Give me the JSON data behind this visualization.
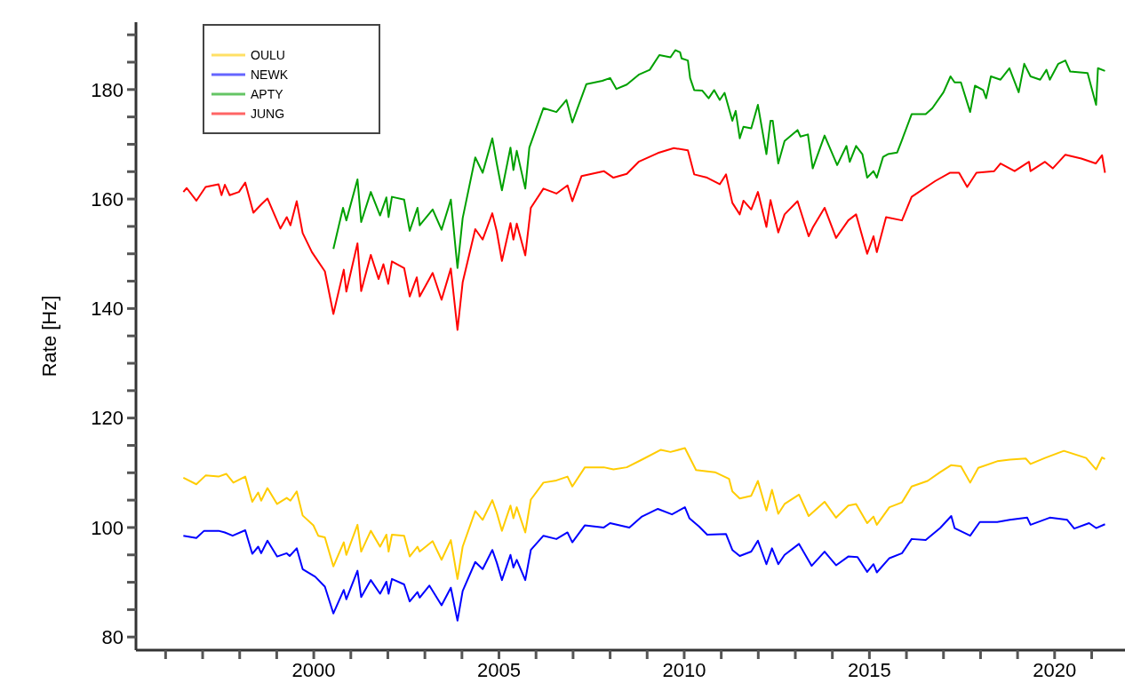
{
  "chart_data": {
    "type": "line",
    "ylabel": "Rate [Hz]",
    "xlim": [
      1995.2,
      2021.9
    ],
    "xticks": [
      {
        "value": 1996,
        "label": null
      },
      {
        "value": 1997,
        "label": null
      },
      {
        "value": 1998,
        "label": null
      },
      {
        "value": 1999,
        "label": null
      },
      2000,
      {
        "value": 2001,
        "label": null
      },
      {
        "value": 2002,
        "label": null
      },
      {
        "value": 2003,
        "label": null
      },
      {
        "value": 2004,
        "label": null
      },
      2005,
      {
        "value": 2006,
        "label": null
      },
      {
        "value": 2007,
        "label": null
      },
      {
        "value": 2008,
        "label": null
      },
      {
        "value": 2009,
        "label": null
      },
      2010,
      {
        "value": 2011,
        "label": null
      },
      {
        "value": 2012,
        "label": null
      },
      {
        "value": 2013,
        "label": null
      },
      {
        "value": 2014,
        "label": null
      },
      2015,
      {
        "value": 2016,
        "label": null
      },
      {
        "value": 2017,
        "label": null
      },
      {
        "value": 2018,
        "label": null
      },
      {
        "value": 2019,
        "label": null
      },
      2020,
      {
        "value": 2021,
        "label": null
      }
    ],
    "ylim": [
      77.6,
      192.3
    ],
    "yticks": [
      80,
      {
        "value": 85,
        "label": null
      },
      {
        "value": 90,
        "label": null
      },
      {
        "value": 95,
        "label": null
      },
      100,
      {
        "value": 105,
        "label": null
      },
      {
        "value": 110,
        "label": null
      },
      {
        "value": 115,
        "label": null
      },
      120,
      {
        "value": 125,
        "label": null
      },
      {
        "value": 130,
        "label": null
      },
      {
        "value": 135,
        "label": null
      },
      140,
      {
        "value": 145,
        "label": null
      },
      {
        "value": 150,
        "label": null
      },
      {
        "value": 155,
        "label": null
      },
      160,
      {
        "value": 165,
        "label": null
      },
      {
        "value": 170,
        "label": null
      },
      {
        "value": 175,
        "label": null
      },
      180,
      {
        "value": 185,
        "label": null
      },
      {
        "value": 190,
        "label": null
      }
    ],
    "grid": false,
    "legend": "top left",
    "marker": "none",
    "line_style": "solid",
    "series": [
      {
        "name": "OULU",
        "color": "#ffcc00",
        "x": [
          1996.48,
          1996.83,
          1997.08,
          1997.43,
          1997.64,
          1997.83,
          1998.15,
          1998.34,
          1998.5,
          1998.58,
          1998.75,
          1999.01,
          1999.27,
          1999.37,
          1999.54,
          1999.7,
          1999.99,
          2000.12,
          2000.3,
          2000.53,
          2000.81,
          2000.88,
          2001.18,
          2001.28,
          2001.54,
          2001.79,
          2001.96,
          2002.02,
          2002.11,
          2002.44,
          2002.59,
          2002.8,
          2002.86,
          2003.21,
          2003.45,
          2003.7,
          2003.88,
          2004.02,
          2004.36,
          2004.56,
          2004.82,
          2004.94,
          2005.08,
          2005.31,
          2005.39,
          2005.48,
          2005.71,
          2005.86,
          2006.2,
          2006.55,
          2006.85,
          2006.98,
          2007.32,
          2007.83,
          2008.09,
          2008.45,
          2008.86,
          2009.37,
          2009.63,
          2010.02,
          2010.32,
          2010.83,
          2011.21,
          2011.3,
          2011.5,
          2011.81,
          2011.99,
          2012.22,
          2012.37,
          2012.54,
          2012.71,
          2013.1,
          2013.36,
          2013.79,
          2014.1,
          2014.43,
          2014.64,
          2014.94,
          2015.11,
          2015.2,
          2015.54,
          2015.88,
          2016.14,
          2016.57,
          2016.91,
          2017.21,
          2017.47,
          2017.72,
          2017.94,
          2018.45,
          2018.79,
          2019.22,
          2019.35,
          2019.74,
          2020.25,
          2020.85,
          2021.12,
          2021.28,
          2021.36
        ],
        "values": [
          109.1,
          107.9,
          109.5,
          109.3,
          109.8,
          108.2,
          109.3,
          104.7,
          106.4,
          104.9,
          107.2,
          104.3,
          105.4,
          104.9,
          106.6,
          102.2,
          100.4,
          98.5,
          98.2,
          92.9,
          97.3,
          95.0,
          100.5,
          95.6,
          99.4,
          96.5,
          98.7,
          95.6,
          98.7,
          98.5,
          94.7,
          96.5,
          95.6,
          97.5,
          94.1,
          97.7,
          90.6,
          96.5,
          103.0,
          101.4,
          105.0,
          102.7,
          99.4,
          104.0,
          101.7,
          103.7,
          99.1,
          105.1,
          108.2,
          108.6,
          109.3,
          107.5,
          111.0,
          111.0,
          110.6,
          111.0,
          112.4,
          114.2,
          113.8,
          114.5,
          110.5,
          110.1,
          108.9,
          106.6,
          105.3,
          105.8,
          108.5,
          103.1,
          106.9,
          102.5,
          104.3,
          106.0,
          102.1,
          104.7,
          101.8,
          104.0,
          104.3,
          100.8,
          102.0,
          100.5,
          103.7,
          104.6,
          107.5,
          108.5,
          110.1,
          111.4,
          111.2,
          108.2,
          110.9,
          112.1,
          112.4,
          112.6,
          111.6,
          112.7,
          114.0,
          112.7,
          110.6,
          112.8,
          112.5
        ]
      },
      {
        "name": "NEWK",
        "color": "#0000ff",
        "x": [
          1996.48,
          1996.83,
          1997.04,
          1997.43,
          1997.6,
          1997.81,
          1998.15,
          1998.34,
          1998.5,
          1998.58,
          1998.75,
          1999.01,
          1999.27,
          1999.35,
          1999.54,
          1999.7,
          2000.04,
          2000.3,
          2000.53,
          2000.81,
          2000.88,
          2001.18,
          2001.28,
          2001.54,
          2001.79,
          2001.96,
          2002.02,
          2002.11,
          2002.44,
          2002.59,
          2002.8,
          2002.86,
          2003.12,
          2003.45,
          2003.7,
          2003.88,
          2004.02,
          2004.36,
          2004.56,
          2004.82,
          2004.94,
          2005.08,
          2005.31,
          2005.39,
          2005.48,
          2005.71,
          2005.86,
          2006.2,
          2006.55,
          2006.85,
          2006.98,
          2007.32,
          2007.83,
          2008.0,
          2008.52,
          2008.86,
          2009.29,
          2009.67,
          2010.02,
          2010.14,
          2010.4,
          2010.62,
          2011.13,
          2011.3,
          2011.5,
          2011.81,
          2011.99,
          2012.22,
          2012.37,
          2012.54,
          2012.71,
          2013.1,
          2013.44,
          2013.79,
          2014.1,
          2014.43,
          2014.68,
          2014.94,
          2015.11,
          2015.2,
          2015.54,
          2015.88,
          2016.14,
          2016.52,
          2016.91,
          2017.21,
          2017.3,
          2017.72,
          2017.98,
          2018.45,
          2018.79,
          2019.26,
          2019.35,
          2019.87,
          2020.34,
          2020.53,
          2020.93,
          2021.12,
          2021.36
        ],
        "values": [
          98.5,
          98.1,
          99.4,
          99.4,
          99.1,
          98.5,
          99.5,
          95.2,
          96.5,
          95.3,
          97.6,
          94.7,
          95.3,
          94.8,
          96.2,
          92.4,
          91.0,
          89.2,
          84.3,
          88.6,
          86.9,
          92.1,
          87.3,
          90.4,
          87.9,
          90.1,
          87.9,
          90.6,
          89.6,
          86.5,
          88.2,
          87.2,
          89.4,
          85.8,
          89.0,
          83.0,
          88.4,
          93.7,
          92.4,
          95.9,
          93.6,
          90.4,
          95.0,
          92.7,
          94.1,
          90.4,
          95.9,
          98.5,
          97.9,
          99.1,
          97.3,
          100.4,
          100.0,
          100.8,
          100.0,
          102.0,
          103.4,
          102.4,
          103.7,
          101.7,
          100.2,
          98.7,
          98.8,
          95.9,
          94.8,
          95.6,
          97.6,
          93.3,
          96.2,
          93.3,
          95.0,
          97.0,
          93.0,
          95.6,
          93.1,
          94.7,
          94.6,
          91.9,
          93.3,
          91.8,
          94.4,
          95.3,
          97.9,
          97.7,
          99.9,
          102.1,
          99.9,
          98.5,
          101.0,
          101.0,
          101.4,
          101.8,
          100.5,
          101.8,
          101.4,
          99.8,
          100.8,
          99.9,
          100.6
        ]
      },
      {
        "name": "APTY",
        "color": "#00a000",
        "x": [
          2000.53,
          2000.79,
          2000.88,
          2001.18,
          2001.28,
          2001.54,
          2001.79,
          2001.96,
          2002.02,
          2002.11,
          2002.44,
          2002.59,
          2002.8,
          2002.86,
          2003.21,
          2003.45,
          2003.7,
          2003.88,
          2004.02,
          2004.36,
          2004.56,
          2004.82,
          2004.94,
          2005.08,
          2005.31,
          2005.39,
          2005.48,
          2005.71,
          2005.82,
          2006.2,
          2006.55,
          2006.82,
          2006.98,
          2007.36,
          2007.79,
          2008.0,
          2008.17,
          2008.45,
          2008.77,
          2009.07,
          2009.33,
          2009.63,
          2009.76,
          2009.89,
          2009.93,
          2010.1,
          2010.16,
          2010.27,
          2010.49,
          2010.66,
          2010.81,
          2010.96,
          2011.09,
          2011.3,
          2011.39,
          2011.5,
          2011.6,
          2011.81,
          2011.99,
          2012.22,
          2012.33,
          2012.39,
          2012.54,
          2012.71,
          2013.06,
          2013.14,
          2013.34,
          2013.47,
          2013.79,
          2014.13,
          2014.38,
          2014.47,
          2014.64,
          2014.81,
          2014.94,
          2015.11,
          2015.2,
          2015.37,
          2015.5,
          2015.75,
          2015.88,
          2016.14,
          2016.52,
          2016.7,
          2017.0,
          2017.19,
          2017.3,
          2017.47,
          2017.72,
          2017.85,
          2018.07,
          2018.15,
          2018.28,
          2018.54,
          2018.78,
          2019.03,
          2019.18,
          2019.35,
          2019.61,
          2019.78,
          2019.87,
          2020.1,
          2020.29,
          2020.42,
          2020.89,
          2021.12,
          2021.17,
          2021.36
        ],
        "values": [
          150.9,
          158.4,
          156.1,
          163.6,
          155.8,
          161.3,
          157.0,
          160.3,
          156.7,
          160.4,
          159.9,
          154.2,
          158.4,
          155.2,
          158.1,
          154.4,
          159.9,
          147.4,
          156.5,
          167.6,
          164.8,
          171.1,
          166.5,
          161.6,
          169.4,
          165.3,
          168.8,
          161.9,
          169.4,
          176.6,
          175.9,
          178.1,
          174.0,
          181.0,
          181.6,
          182.1,
          180.1,
          180.9,
          182.7,
          183.6,
          186.3,
          185.9,
          187.2,
          186.8,
          185.7,
          185.3,
          182.1,
          179.9,
          179.8,
          178.4,
          179.9,
          178.1,
          179.4,
          174.3,
          176.1,
          171.1,
          173.2,
          172.9,
          177.2,
          168.2,
          174.3,
          174.3,
          166.5,
          170.6,
          172.6,
          171.4,
          171.8,
          165.6,
          171.6,
          166.2,
          169.7,
          166.8,
          169.7,
          168.2,
          163.9,
          165.1,
          163.9,
          167.7,
          168.2,
          168.5,
          170.8,
          175.5,
          175.5,
          176.6,
          179.5,
          182.4,
          181.3,
          181.3,
          175.9,
          180.7,
          179.9,
          178.4,
          182.4,
          181.8,
          183.9,
          179.5,
          184.7,
          182.4,
          181.8,
          183.6,
          181.8,
          184.7,
          185.3,
          183.3,
          183.0,
          177.2,
          183.9,
          183.4
        ]
      },
      {
        "name": "JUNG",
        "color": "#ff0000",
        "x": [
          1996.48,
          1996.57,
          1996.83,
          1997.08,
          1997.43,
          1997.51,
          1997.6,
          1997.73,
          1997.98,
          1998.15,
          1998.37,
          1998.58,
          1998.75,
          1999.1,
          1999.27,
          1999.37,
          1999.54,
          1999.7,
          1999.95,
          2000.3,
          2000.53,
          2000.81,
          2000.88,
          2001.18,
          2001.28,
          2001.54,
          2001.75,
          2001.88,
          2002.01,
          2002.11,
          2002.44,
          2002.59,
          2002.78,
          2002.86,
          2003.21,
          2003.45,
          2003.7,
          2003.88,
          2004.02,
          2004.36,
          2004.56,
          2004.82,
          2004.94,
          2005.08,
          2005.31,
          2005.39,
          2005.48,
          2005.71,
          2005.86,
          2006.2,
          2006.55,
          2006.85,
          2006.98,
          2007.23,
          2007.83,
          2008.09,
          2008.45,
          2008.77,
          2009.29,
          2009.72,
          2010.1,
          2010.27,
          2010.62,
          2010.96,
          2011.13,
          2011.3,
          2011.5,
          2011.6,
          2011.81,
          2011.99,
          2012.22,
          2012.33,
          2012.54,
          2012.71,
          2013.06,
          2013.36,
          2013.48,
          2013.79,
          2014.1,
          2014.43,
          2014.64,
          2014.94,
          2015.11,
          2015.2,
          2015.45,
          2015.88,
          2016.14,
          2016.78,
          2017.17,
          2017.42,
          2017.64,
          2017.89,
          2018.37,
          2018.54,
          2018.92,
          2019.31,
          2019.35,
          2019.74,
          2019.95,
          2020.29,
          2020.72,
          2021.11,
          2021.28,
          2021.36
        ],
        "values": [
          161.3,
          162.0,
          159.7,
          162.2,
          162.7,
          160.7,
          162.6,
          160.7,
          161.3,
          163.0,
          157.5,
          159.0,
          160.1,
          154.6,
          156.7,
          155.2,
          159.6,
          153.8,
          150.3,
          146.8,
          139.0,
          147.1,
          143.1,
          151.9,
          143.2,
          149.8,
          145.4,
          148.1,
          144.5,
          148.6,
          147.4,
          142.2,
          145.7,
          142.2,
          146.5,
          141.6,
          147.3,
          136.1,
          144.8,
          154.5,
          152.6,
          157.4,
          154.1,
          148.7,
          155.6,
          152.6,
          155.5,
          149.7,
          158.4,
          161.9,
          161.0,
          162.5,
          159.6,
          164.2,
          165.1,
          163.9,
          164.6,
          166.8,
          168.4,
          169.3,
          168.9,
          164.5,
          163.9,
          162.7,
          164.5,
          159.3,
          157.2,
          159.7,
          158.1,
          161.3,
          154.9,
          159.8,
          153.9,
          157.2,
          159.6,
          153.2,
          154.9,
          158.4,
          152.9,
          156.1,
          157.2,
          150.0,
          153.2,
          150.3,
          156.7,
          156.1,
          160.4,
          163.3,
          164.8,
          164.8,
          162.2,
          164.8,
          165.1,
          166.5,
          165.1,
          166.8,
          165.1,
          166.8,
          165.6,
          168.1,
          167.4,
          166.5,
          168.0,
          164.8
        ]
      }
    ]
  }
}
